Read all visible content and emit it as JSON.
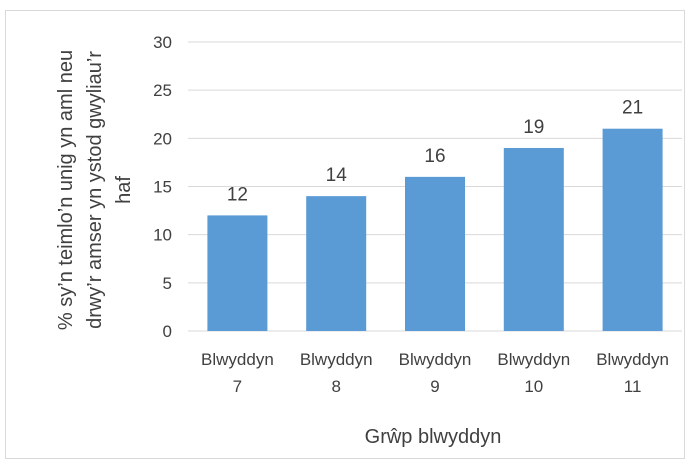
{
  "chart_data": {
    "type": "bar",
    "categories": [
      "Blwyddyn 7",
      "Blwyddyn 8",
      "Blwyddyn 9",
      "Blwyddyn 10",
      "Blwyddyn 11"
    ],
    "category_lines": [
      [
        "Blwyddyn",
        "7"
      ],
      [
        "Blwyddyn",
        "8"
      ],
      [
        "Blwyddyn",
        "9"
      ],
      [
        "Blwyddyn",
        "10"
      ],
      [
        "Blwyddyn",
        "11"
      ]
    ],
    "values": [
      12,
      14,
      16,
      19,
      21
    ],
    "data_labels": [
      "12",
      "14",
      "16",
      "19",
      "21"
    ],
    "title": "",
    "xlabel": "Grŵp blwyddyn",
    "ylabel": "% sy’n teimlo’n unig yn aml neu drwy’r amser yn ystod gwyliau’r haf",
    "ylabel_lines": [
      "% sy’n teimlo’n unig yn aml neu",
      "drwy’r amser yn ystod gwyliau’r",
      "haf"
    ],
    "ylim": [
      0,
      30
    ],
    "yticks": [
      0,
      5,
      10,
      15,
      20,
      25,
      30
    ],
    "ytick_labels": [
      "0",
      "5",
      "10",
      "15",
      "20",
      "25",
      "30"
    ],
    "grid": true,
    "legend": "none",
    "colors": {
      "bar": "#5b9bd5",
      "grid": "#d9d9d9",
      "text": "#404040"
    }
  }
}
